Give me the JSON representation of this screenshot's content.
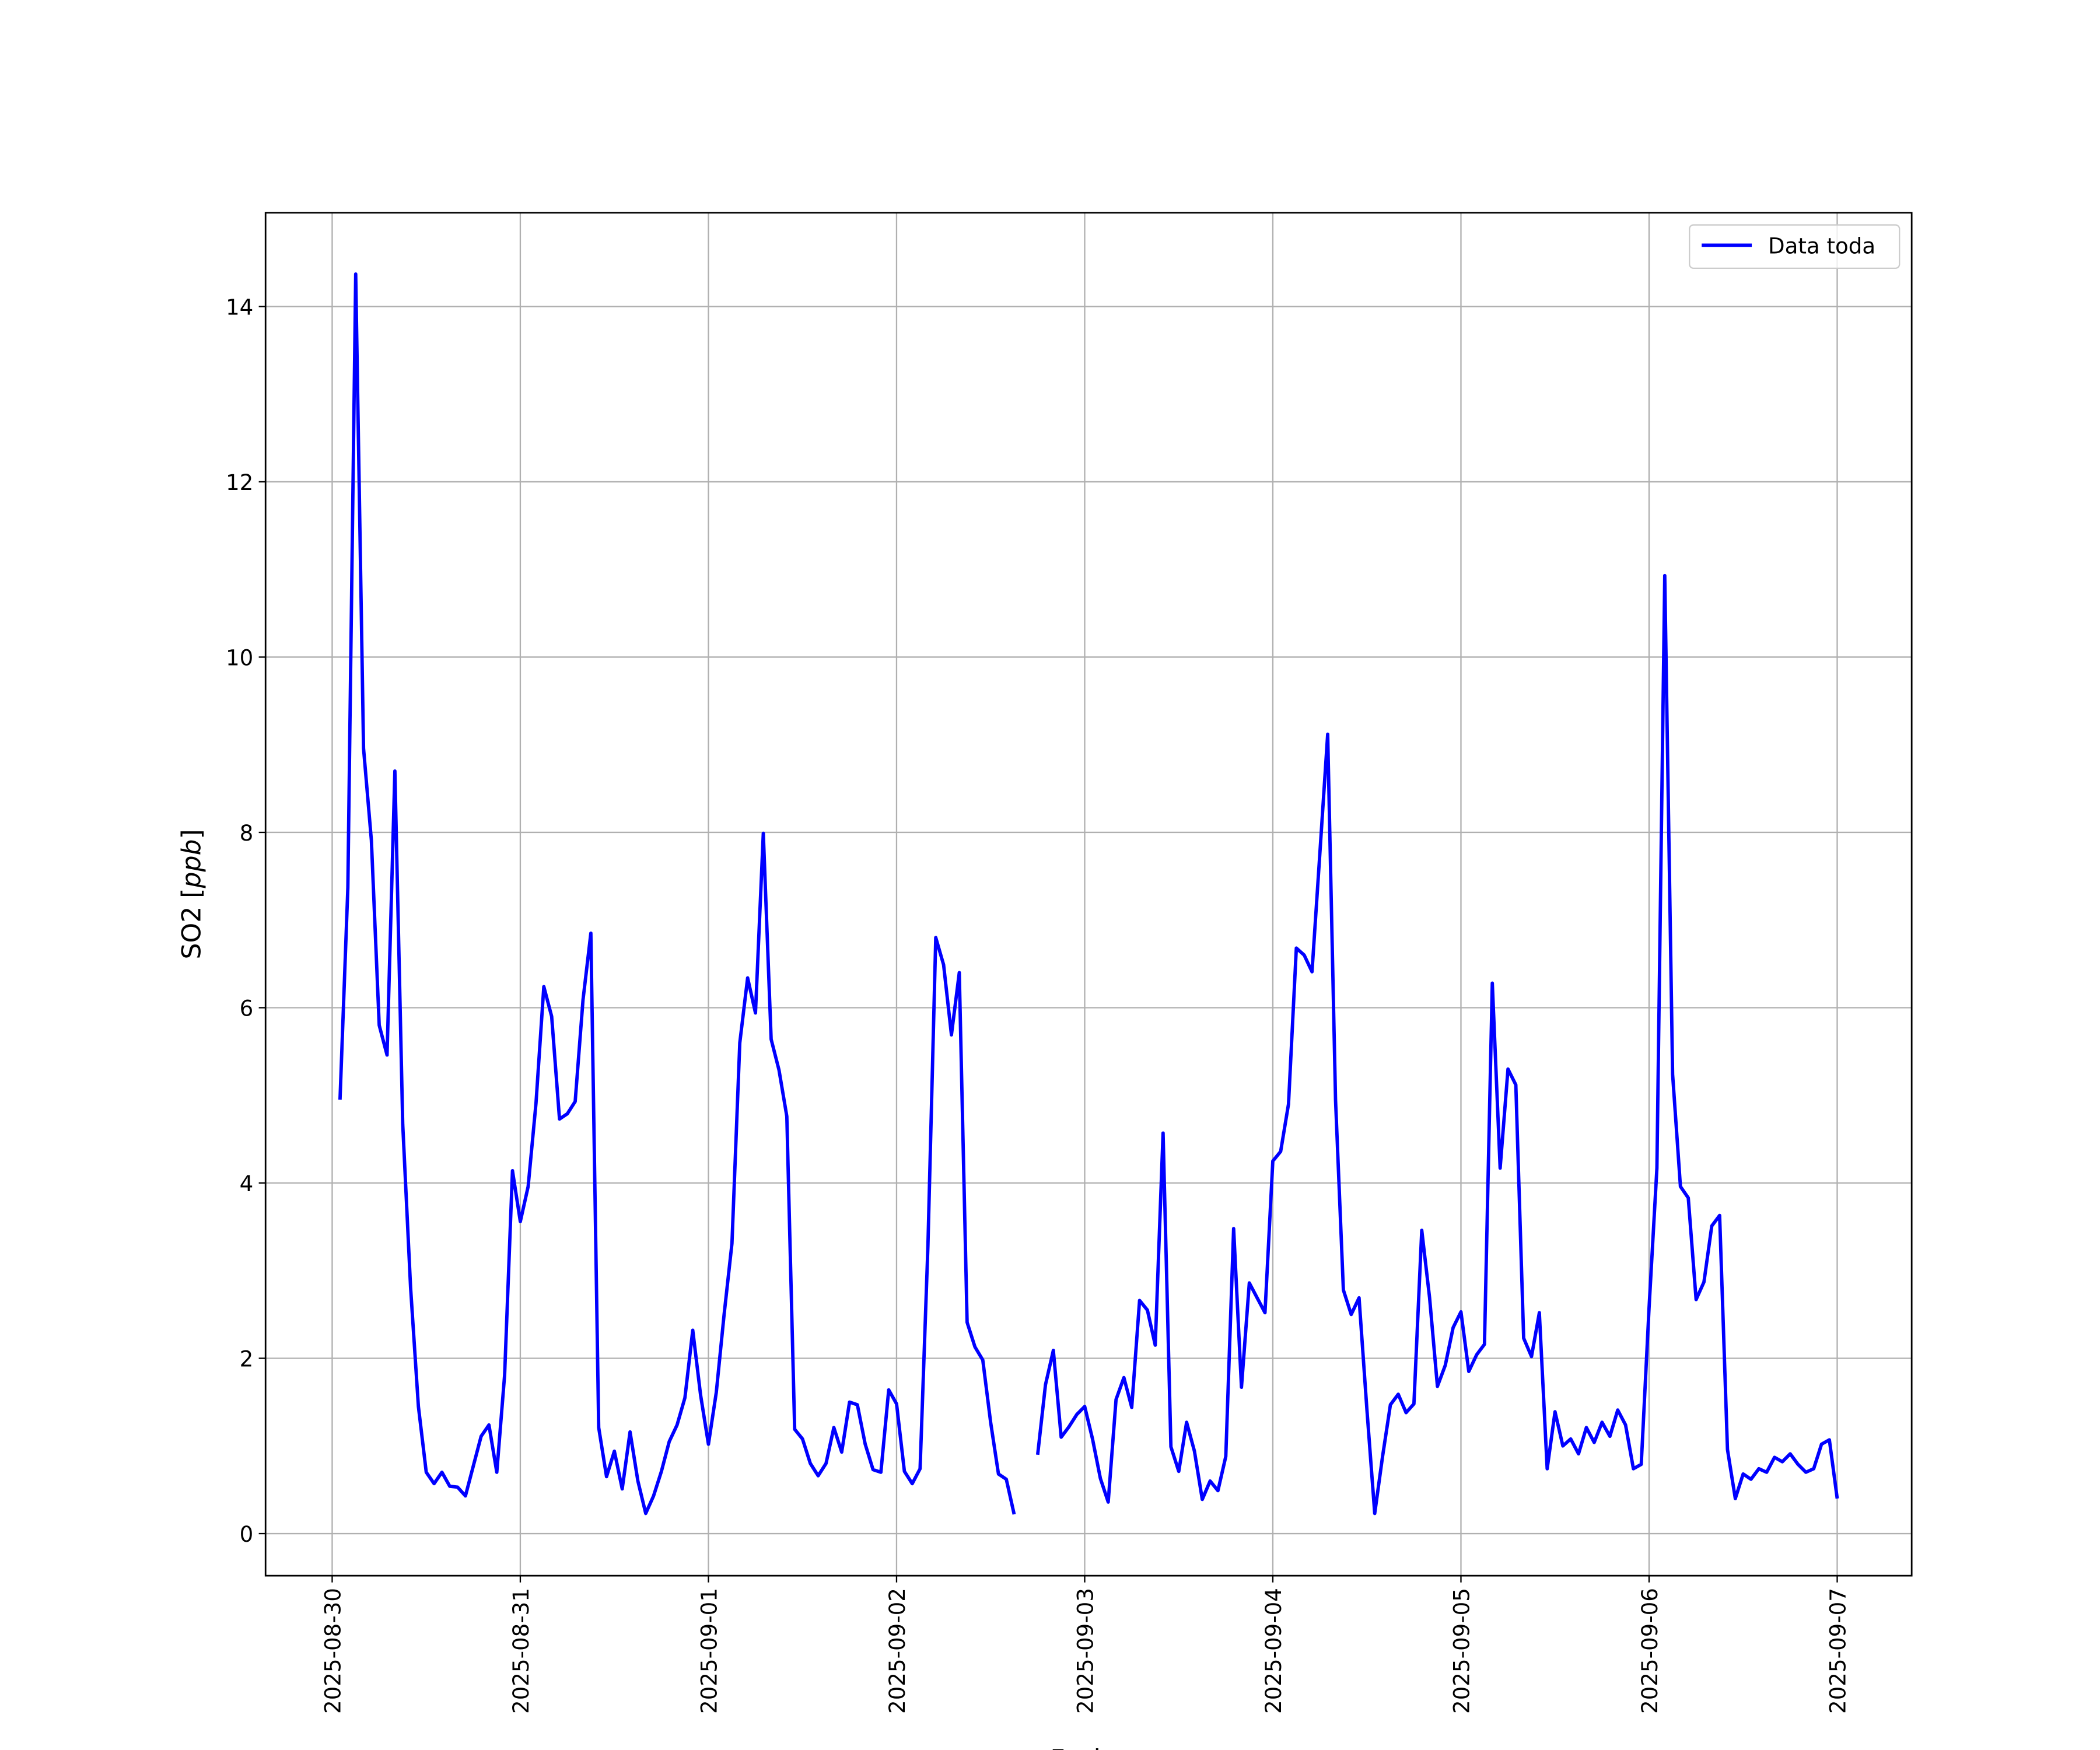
{
  "chart_data": {
    "type": "line",
    "title": "",
    "xlabel": "Fecha",
    "ylabel": "SO2 [ppb]",
    "ylabel_parts": {
      "plain": "SO2 [",
      "italic": "ppb",
      "close": "]"
    },
    "xlim": [
      "2025-08-29T15:30",
      "2025-09-07T09:30"
    ],
    "ylim": [
      -0.48,
      15.07
    ],
    "grid": true,
    "legend_position": "top-right",
    "x_tick_labels": [
      "2025-08-30",
      "2025-08-31",
      "2025-09-01",
      "2025-09-02",
      "2025-09-03",
      "2025-09-04",
      "2025-09-05",
      "2025-09-06",
      "2025-09-07"
    ],
    "y_ticks": [
      0,
      2,
      4,
      6,
      8,
      10,
      12,
      14
    ],
    "y_tick_labels": [
      "0",
      "2",
      "4",
      "6",
      "8",
      "10",
      "12",
      "14"
    ],
    "series": [
      {
        "name": "Data toda",
        "color": "#0000ff",
        "start": "2025-08-30T01:00",
        "interval": "1h",
        "values": [
          4.95,
          7.37,
          14.37,
          8.96,
          7.91,
          5.8,
          5.46,
          8.7,
          4.67,
          2.81,
          1.45,
          0.7,
          0.57,
          0.7,
          0.54,
          0.53,
          0.43,
          0.77,
          1.11,
          1.24,
          0.7,
          1.81,
          4.14,
          3.56,
          3.96,
          4.91,
          6.24,
          5.9,
          4.73,
          4.79,
          4.93,
          6.09,
          6.85,
          1.21,
          0.65,
          0.94,
          0.51,
          1.16,
          0.6,
          0.23,
          0.43,
          0.71,
          1.05,
          1.24,
          1.55,
          2.32,
          1.58,
          1.02,
          1.61,
          2.5,
          3.31,
          5.6,
          6.34,
          5.94,
          7.99,
          5.64,
          5.29,
          4.76,
          1.19,
          1.08,
          0.8,
          0.66,
          0.8,
          1.21,
          0.93,
          1.5,
          1.47,
          1.02,
          0.73,
          0.7,
          1.64,
          1.48,
          0.71,
          0.57,
          0.74,
          3.28,
          6.8,
          6.49,
          5.69,
          6.4,
          2.41,
          2.13,
          1.98,
          1.27,
          0.68,
          0.62,
          0.22,
          null,
          null,
          0.9,
          1.7,
          2.09,
          1.1,
          1.22,
          1.36,
          1.45,
          1.08,
          0.63,
          0.36,
          1.53,
          1.78,
          1.44,
          2.66,
          2.55,
          2.15,
          4.57,
          0.99,
          0.71,
          1.27,
          0.94,
          0.39,
          0.6,
          0.49,
          0.88,
          3.48,
          1.67,
          2.86,
          2.69,
          2.52,
          4.25,
          4.36,
          4.9,
          6.68,
          6.6,
          6.41,
          7.76,
          9.12,
          4.95,
          2.78,
          2.5,
          2.69,
          1.42,
          0.23,
          0.88,
          1.47,
          1.59,
          1.38,
          1.48,
          3.46,
          2.69,
          1.68,
          1.92,
          2.35,
          2.53,
          1.85,
          2.04,
          2.16,
          6.28,
          4.17,
          5.3,
          5.12,
          2.23,
          2.02,
          2.52,
          0.74,
          1.39,
          1.0,
          1.08,
          0.91,
          1.21,
          1.04,
          1.27,
          1.11,
          1.41,
          1.24,
          0.74,
          0.79,
          2.58,
          4.17,
          10.93,
          5.24,
          3.96,
          3.83,
          2.67,
          2.87,
          3.51,
          3.63,
          0.96,
          0.4,
          0.68,
          0.62,
          0.74,
          0.7,
          0.87,
          0.82,
          0.91,
          0.79,
          0.7,
          0.74,
          1.02,
          1.07,
          0.4
        ]
      }
    ]
  }
}
